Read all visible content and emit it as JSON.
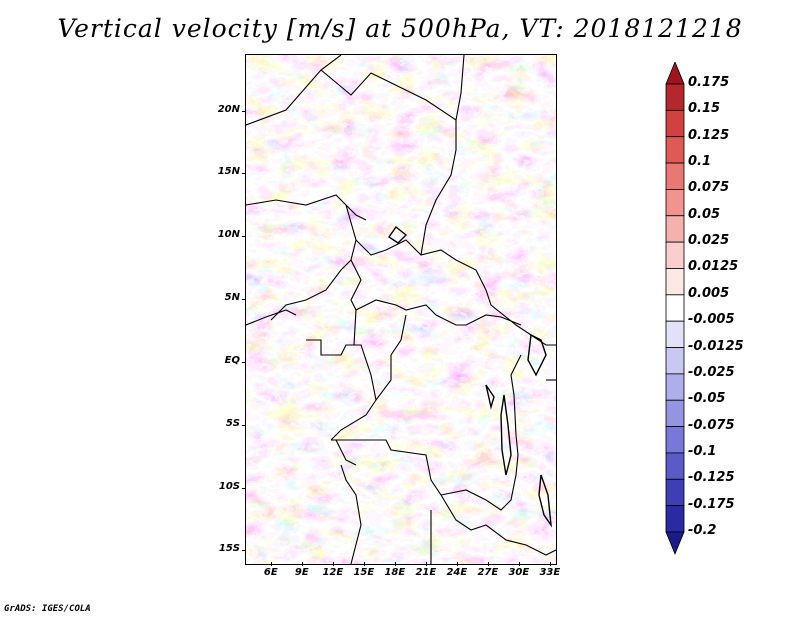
{
  "title": "Vertical velocity [m/s] at 500hPa, VT: 2018121218",
  "footer": "GrADS: IGES/COLA",
  "map": {
    "lat_labels": [
      "20N",
      "15N",
      "10N",
      "5N",
      "EQ",
      "5S",
      "10S",
      "15S"
    ],
    "lon_labels": [
      "6E",
      "9E",
      "12E",
      "15E",
      "18E",
      "21E",
      "24E",
      "27E",
      "30E",
      "33E"
    ],
    "lon_range": [
      3.5,
      33.5
    ],
    "lat_range": [
      -16,
      24.5
    ]
  },
  "colorbar": {
    "labels": [
      "0.175",
      "0.15",
      "0.125",
      "0.1",
      "0.075",
      "0.05",
      "0.025",
      "0.0125",
      "0.005",
      "-0.005",
      "-0.0125",
      "-0.025",
      "-0.05",
      "-0.075",
      "-0.1",
      "-0.125",
      "-0.175",
      "-0.2"
    ],
    "colors": [
      "#a0141e",
      "#b4282d",
      "#d2413f",
      "#e05a55",
      "#e87873",
      "#ef9490",
      "#f5b1ad",
      "#f9cecb",
      "#fde8e6",
      "#ffffff",
      "#e1e1fa",
      "#c8c8f3",
      "#aeaeeb",
      "#9494e2",
      "#7878d8",
      "#5a5ac8",
      "#3e3eb6",
      "#2a2aa5",
      "#1b1b8a"
    ]
  }
}
